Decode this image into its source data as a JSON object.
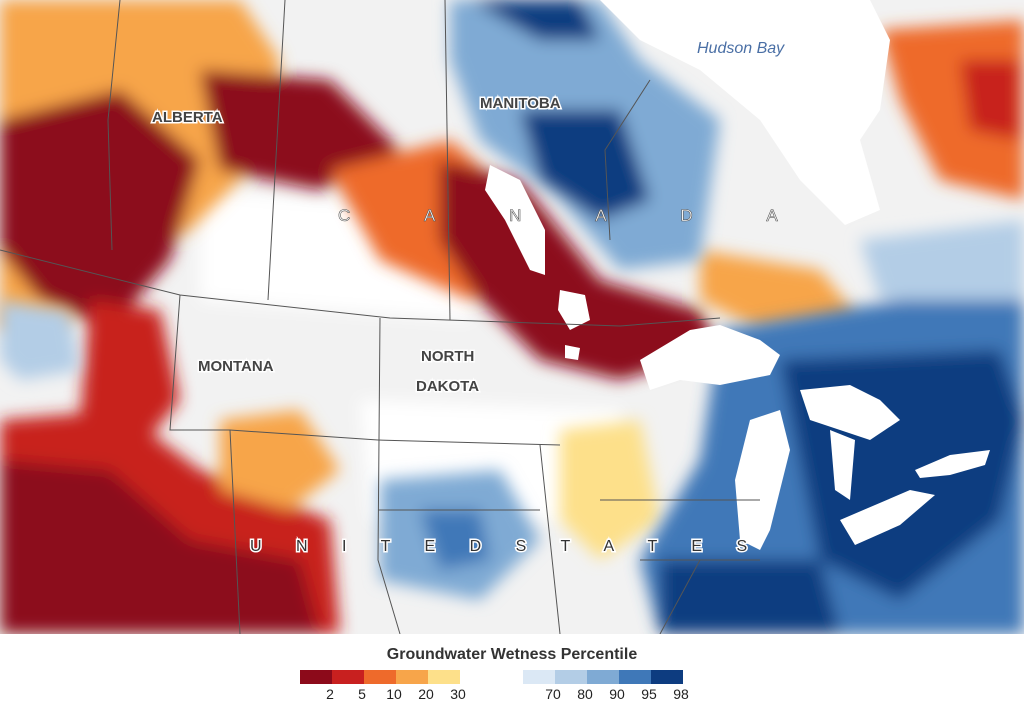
{
  "map": {
    "labels": {
      "hudson_bay": "Hudson Bay",
      "alberta": "ALBERTA",
      "manitoba": "MANITOBA",
      "canada": "C A N A D A",
      "montana": "MONTANA",
      "north": "NORTH",
      "dakota": "DAKOTA",
      "united_states": "U N I T E D   S T A T E S"
    },
    "colors": {
      "land": "#f2f2f2",
      "water": "#ffffff",
      "dry_2": "#8c0a1a",
      "dry_5": "#c8201f",
      "dry_10": "#ee6a2b",
      "dry_20": "#f7a54a",
      "dry_30": "#fde08a",
      "wet_70": "#dbe8f5",
      "wet_80": "#b3cde6",
      "wet_90": "#7faad4",
      "wet_95": "#3f78b8",
      "wet_98": "#0d3c80"
    }
  },
  "legend": {
    "title": "Groundwater Wetness Percentile",
    "dry": [
      {
        "label": "2",
        "color": "#8c0a1a"
      },
      {
        "label": "5",
        "color": "#c8201f"
      },
      {
        "label": "10",
        "color": "#ee6a2b"
      },
      {
        "label": "20",
        "color": "#f7a54a"
      },
      {
        "label": "30",
        "color": "#fde08a"
      }
    ],
    "wet": [
      {
        "label": "70",
        "color": "#dbe8f5"
      },
      {
        "label": "80",
        "color": "#b3cde6"
      },
      {
        "label": "90",
        "color": "#7faad4"
      },
      {
        "label": "95",
        "color": "#3f78b8"
      },
      {
        "label": "98",
        "color": "#0d3c80"
      }
    ]
  }
}
